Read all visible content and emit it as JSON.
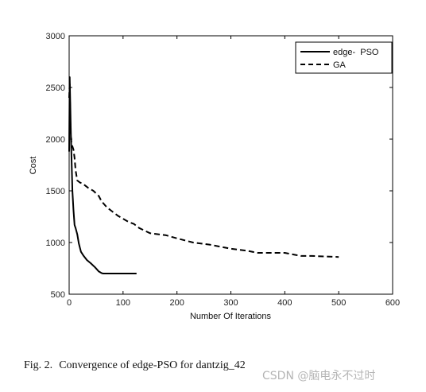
{
  "chart_data": {
    "type": "line",
    "title": "",
    "xlabel": "Number Of Iterations",
    "ylabel": "Cost",
    "xlim": [
      0,
      600
    ],
    "ylim": [
      500,
      3000
    ],
    "xticks": [
      0,
      100,
      200,
      300,
      400,
      500,
      600
    ],
    "yticks": [
      500,
      1000,
      1500,
      2000,
      2500,
      3000
    ],
    "grid": false,
    "legend_position": "top-right",
    "series": [
      {
        "name": "edge-  PSO",
        "style": "solid",
        "color": "#000000",
        "x": [
          0,
          1,
          2,
          3,
          4,
          5,
          6,
          8,
          10,
          12,
          15,
          18,
          22,
          27,
          33,
          40,
          48,
          55,
          60,
          63,
          70,
          80,
          100,
          125
        ],
        "y": [
          1880,
          2600,
          2350,
          2120,
          1900,
          1700,
          1500,
          1320,
          1170,
          1140,
          1080,
          990,
          910,
          870,
          830,
          800,
          760,
          720,
          705,
          700,
          700,
          700,
          700,
          700
        ]
      },
      {
        "name": "GA",
        "style": "dashed",
        "color": "#000000",
        "x": [
          0,
          1,
          2,
          3,
          4,
          6,
          8,
          10,
          12,
          15,
          20,
          25,
          35,
          45,
          55,
          60,
          70,
          80,
          90,
          100,
          110,
          120,
          130,
          150,
          180,
          200,
          230,
          260,
          280,
          300,
          330,
          350,
          400,
          420,
          430,
          450,
          500
        ],
        "y": [
          2400,
          2550,
          2200,
          2050,
          1980,
          1930,
          1900,
          1820,
          1700,
          1600,
          1580,
          1570,
          1530,
          1500,
          1450,
          1400,
          1340,
          1300,
          1260,
          1230,
          1200,
          1180,
          1140,
          1090,
          1070,
          1040,
          1000,
          980,
          960,
          940,
          920,
          900,
          900,
          880,
          870,
          870,
          860
        ]
      }
    ]
  },
  "caption": {
    "figure": "Fig. 2.",
    "text": "Convergence of edge-PSO for dantzig_42"
  },
  "watermark": "CSDN @脑电永不过时"
}
